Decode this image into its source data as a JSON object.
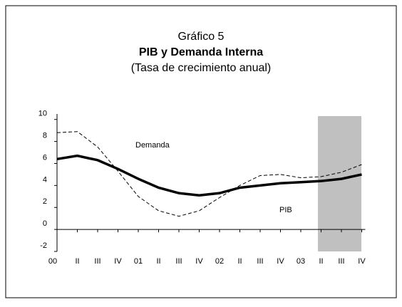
{
  "chart_data": {
    "type": "line",
    "title": "Gráfico 5",
    "subtitle": "PIB y Demanda Interna",
    "subtitle2": "(Tasa de crecimiento anual)",
    "categories": [
      "00",
      "II",
      "III",
      "IV",
      "01",
      "II",
      "III",
      "IV",
      "02",
      "II",
      "III",
      "IV",
      "03",
      "II",
      "III",
      "IV"
    ],
    "series": [
      {
        "name": "PIB",
        "color": "#000000",
        "values": [
          6.4,
          6.7,
          6.3,
          5.5,
          4.6,
          3.8,
          3.3,
          3.1,
          3.3,
          3.8,
          4.0,
          4.2,
          4.3,
          4.4,
          4.6,
          5.0
        ]
      },
      {
        "name": "Demanda",
        "color": "#000000",
        "values": [
          8.8,
          8.9,
          7.5,
          5.3,
          3.0,
          1.7,
          1.2,
          1.7,
          2.9,
          4.0,
          4.9,
          5.0,
          4.7,
          4.8,
          5.2,
          5.9
        ]
      }
    ],
    "ylim": [
      -2,
      10.5
    ],
    "yticks": [
      -2,
      0,
      2,
      4,
      6,
      8,
      10
    ]
  }
}
